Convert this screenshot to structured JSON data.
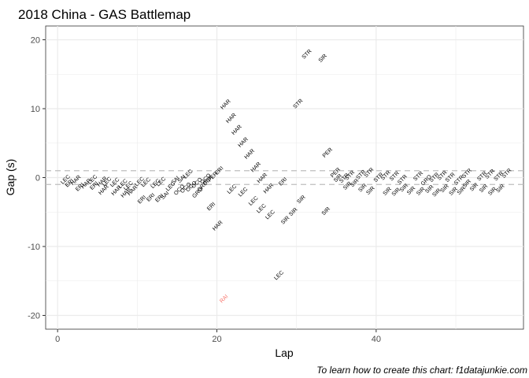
{
  "chart_data": {
    "type": "scatter",
    "title": "2018 China - GAS Battlemap",
    "xlabel": "Lap",
    "ylabel": "Gap (s)",
    "xlim": [
      -1.5,
      58.5
    ],
    "ylim": [
      -22,
      22
    ],
    "x_ticks": [
      0,
      20,
      40
    ],
    "y_ticks": [
      20,
      10,
      0,
      -10,
      -20
    ],
    "x_minor_ticks": [
      10,
      30,
      50
    ],
    "y_minor_ticks": [
      15,
      5,
      -5,
      -15
    ],
    "grid": true,
    "reference_lines": [
      1,
      -1
    ],
    "colors": {
      "label": "#000000",
      "highlight": "#f8766d",
      "reference_line": "#bebebe",
      "grid": "#ebebeb"
    },
    "caption": "To learn how to create this chart: f1datajunkie.com",
    "points": [
      {
        "lap": 1,
        "gap": -0.3,
        "driver": "LEC"
      },
      {
        "lap": 1.5,
        "gap": -0.8,
        "driver": "ERI"
      },
      {
        "lap": 2.3,
        "gap": -0.4,
        "driver": "HAR"
      },
      {
        "lap": 2.8,
        "gap": -1.4,
        "driver": "ERI"
      },
      {
        "lap": 3.6,
        "gap": -0.9,
        "driver": "HAR"
      },
      {
        "lap": 4.4,
        "gap": -0.3,
        "driver": "LEC"
      },
      {
        "lap": 4.6,
        "gap": -1.2,
        "driver": "ERI"
      },
      {
        "lap": 5.6,
        "gap": -0.6,
        "driver": "HAR"
      },
      {
        "lap": 6.2,
        "gap": -0.6,
        "driver": "LEC"
      },
      {
        "lap": 5.8,
        "gap": -1.8,
        "driver": "HAR"
      },
      {
        "lap": 7.2,
        "gap": -0.7,
        "driver": "LEC"
      },
      {
        "lap": 7.4,
        "gap": -1.9,
        "driver": "HAR"
      },
      {
        "lap": 8.2,
        "gap": -0.9,
        "driver": "LEC"
      },
      {
        "lap": 8.9,
        "gap": -1.2,
        "driver": "LEC"
      },
      {
        "lap": 8.6,
        "gap": -2.2,
        "driver": "HAR"
      },
      {
        "lap": 9.4,
        "gap": -1.9,
        "driver": "HAR"
      },
      {
        "lap": 10.3,
        "gap": -0.6,
        "driver": "LEC"
      },
      {
        "lap": 11.1,
        "gap": -0.7,
        "driver": "LEC"
      },
      {
        "lap": 10.6,
        "gap": -3.2,
        "driver": "ERI"
      },
      {
        "lap": 11.7,
        "gap": -2.9,
        "driver": "ERI"
      },
      {
        "lap": 12.3,
        "gap": -0.9,
        "driver": "LEC"
      },
      {
        "lap": 13.0,
        "gap": -0.6,
        "driver": "LEC"
      },
      {
        "lap": 12.8,
        "gap": -3.0,
        "driver": "ERI"
      },
      {
        "lap": 13.5,
        "gap": -2.6,
        "driver": "SAI"
      },
      {
        "lap": 14.2,
        "gap": -1.3,
        "driver": "LEC"
      },
      {
        "lap": 14.8,
        "gap": -0.4,
        "driver": "SAI"
      },
      {
        "lap": 15.6,
        "gap": -0.2,
        "driver": "SAI"
      },
      {
        "lap": 16.4,
        "gap": 0.5,
        "driver": "LEC"
      },
      {
        "lap": 15.3,
        "gap": -1.8,
        "driver": "OCO"
      },
      {
        "lap": 16.1,
        "gap": -1.5,
        "driver": "OCO"
      },
      {
        "lap": 16.8,
        "gap": -1.3,
        "driver": "OCO"
      },
      {
        "lap": 17.5,
        "gap": -0.8,
        "driver": "OCO"
      },
      {
        "lap": 17.6,
        "gap": -2.2,
        "driver": "GRO"
      },
      {
        "lap": 18.2,
        "gap": -1.3,
        "driver": "GRO"
      },
      {
        "lap": 18.6,
        "gap": -0.2,
        "driver": "OCO"
      },
      {
        "lap": 18.9,
        "gap": -0.4,
        "driver": "PER"
      },
      {
        "lap": 19.5,
        "gap": 0.1,
        "driver": "PER"
      },
      {
        "lap": 20.3,
        "gap": 1.0,
        "driver": "ERI"
      },
      {
        "lap": 19.3,
        "gap": -4.2,
        "driver": "ERI"
      },
      {
        "lap": 20.1,
        "gap": -7.0,
        "driver": "HAR"
      },
      {
        "lap": 21.1,
        "gap": 10.6,
        "driver": "HAR"
      },
      {
        "lap": 21.8,
        "gap": 8.6,
        "driver": "HAR"
      },
      {
        "lap": 22.5,
        "gap": 6.9,
        "driver": "HAR"
      },
      {
        "lap": 23.3,
        "gap": 5.1,
        "driver": "HAR"
      },
      {
        "lap": 24.1,
        "gap": 3.4,
        "driver": "HAR"
      },
      {
        "lap": 24.9,
        "gap": 1.5,
        "driver": "HAR"
      },
      {
        "lap": 25.7,
        "gap": -0.1,
        "driver": "HAR"
      },
      {
        "lap": 26.5,
        "gap": -1.6,
        "driver": "HAR"
      },
      {
        "lap": 28.3,
        "gap": -0.6,
        "driver": "ERI"
      },
      {
        "lap": 21.9,
        "gap": -1.7,
        "driver": "LEC"
      },
      {
        "lap": 23.3,
        "gap": -2.1,
        "driver": "LEC"
      },
      {
        "lap": 24.6,
        "gap": -3.4,
        "driver": "LEC"
      },
      {
        "lap": 25.6,
        "gap": -4.5,
        "driver": "LEC"
      },
      {
        "lap": 26.7,
        "gap": -5.4,
        "driver": "LEC"
      },
      {
        "lap": 27.8,
        "gap": -14.2,
        "driver": "LEC"
      },
      {
        "lap": 28.6,
        "gap": -6.2,
        "driver": "SIR"
      },
      {
        "lap": 29.6,
        "gap": -5.0,
        "driver": "SIR"
      },
      {
        "lap": 30.6,
        "gap": -3.2,
        "driver": "SIR"
      },
      {
        "lap": 30.2,
        "gap": 10.7,
        "driver": "STR"
      },
      {
        "lap": 31.3,
        "gap": 17.9,
        "driver": "STR"
      },
      {
        "lap": 33.3,
        "gap": 17.3,
        "driver": "SIR"
      },
      {
        "lap": 33.7,
        "gap": -4.9,
        "driver": "SIR"
      },
      {
        "lap": 33.9,
        "gap": 3.6,
        "driver": "PER"
      },
      {
        "lap": 34.9,
        "gap": 0.7,
        "driver": "PER"
      },
      {
        "lap": 35.2,
        "gap": -0.1,
        "driver": "SIR"
      },
      {
        "lap": 36.0,
        "gap": -0.1,
        "driver": "STR"
      },
      {
        "lap": 36.7,
        "gap": 0.3,
        "driver": "STR"
      },
      {
        "lap": 36.4,
        "gap": -1.2,
        "driver": "SIR"
      },
      {
        "lap": 37.3,
        "gap": -0.8,
        "driver": "SIR"
      },
      {
        "lap": 38.1,
        "gap": 0.4,
        "driver": "STR"
      },
      {
        "lap": 38.3,
        "gap": -1.5,
        "driver": "SIR"
      },
      {
        "lap": 39.1,
        "gap": 0.7,
        "driver": "STR"
      },
      {
        "lap": 39.3,
        "gap": -1.9,
        "driver": "SIR"
      },
      {
        "lap": 40.3,
        "gap": 0.0,
        "driver": "STR"
      },
      {
        "lap": 41.2,
        "gap": 0.3,
        "driver": "STR"
      },
      {
        "lap": 41.4,
        "gap": -2.0,
        "driver": "SIR"
      },
      {
        "lap": 42.3,
        "gap": 0.2,
        "driver": "STR"
      },
      {
        "lap": 42.5,
        "gap": -2.1,
        "driver": "SIR"
      },
      {
        "lap": 43.3,
        "gap": -0.3,
        "driver": "STR"
      },
      {
        "lap": 43.5,
        "gap": -1.5,
        "driver": "SIR"
      },
      {
        "lap": 44.4,
        "gap": -1.9,
        "driver": "SIR"
      },
      {
        "lap": 45.3,
        "gap": 0.2,
        "driver": "STR"
      },
      {
        "lap": 45.6,
        "gap": -2.0,
        "driver": "SIR"
      },
      {
        "lap": 46.3,
        "gap": -0.4,
        "driver": "GRO"
      },
      {
        "lap": 46.7,
        "gap": -1.7,
        "driver": "SIR"
      },
      {
        "lap": 47.3,
        "gap": 0.0,
        "driver": "STR"
      },
      {
        "lap": 47.6,
        "gap": -2.2,
        "driver": "SIR"
      },
      {
        "lap": 48.3,
        "gap": 0.3,
        "driver": "STR"
      },
      {
        "lap": 48.6,
        "gap": -1.6,
        "driver": "SIR"
      },
      {
        "lap": 49.3,
        "gap": 0.0,
        "driver": "STR"
      },
      {
        "lap": 49.7,
        "gap": -2.0,
        "driver": "SIR"
      },
      {
        "lap": 50.4,
        "gap": -0.4,
        "driver": "STR"
      },
      {
        "lap": 50.7,
        "gap": -1.9,
        "driver": "SIR"
      },
      {
        "lap": 51.4,
        "gap": 0.6,
        "driver": "STR"
      },
      {
        "lap": 51.4,
        "gap": -0.9,
        "driver": "SIR"
      },
      {
        "lap": 52.3,
        "gap": -1.4,
        "driver": "SIR"
      },
      {
        "lap": 53.3,
        "gap": 0.2,
        "driver": "STR"
      },
      {
        "lap": 53.5,
        "gap": -1.6,
        "driver": "SIR"
      },
      {
        "lap": 54.3,
        "gap": 0.5,
        "driver": "STR"
      },
      {
        "lap": 54.6,
        "gap": -2.0,
        "driver": "SIR"
      },
      {
        "lap": 55.4,
        "gap": 0.2,
        "driver": "STR"
      },
      {
        "lap": 55.6,
        "gap": -1.6,
        "driver": "SIR"
      },
      {
        "lap": 56.4,
        "gap": 0.6,
        "driver": "STR"
      },
      {
        "lap": 20.9,
        "gap": -17.6,
        "driver": "RAI",
        "highlight": true
      }
    ]
  }
}
